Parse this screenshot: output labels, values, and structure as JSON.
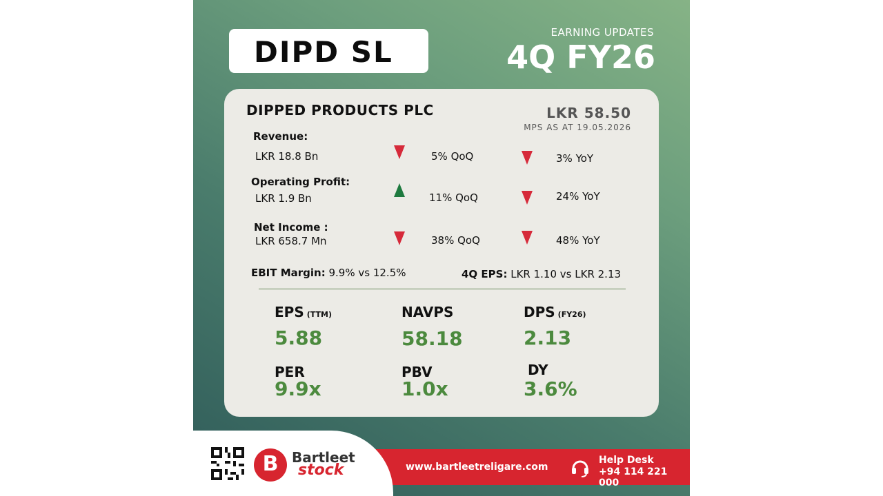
{
  "header": {
    "ticker": "DIPD SL",
    "label": "EARNING UPDATES",
    "quarter": "4Q FY26"
  },
  "company": {
    "name": "DIPPED PRODUCTS PLC",
    "price": "LKR 58.50",
    "price_note": "MPS AS AT 19.05.2026"
  },
  "metrics": [
    {
      "label": "Revenue:",
      "value": "LKR 18.8 Bn",
      "qoq": "5% QoQ",
      "qoq_dir": "down",
      "yoy": "3% YoY",
      "yoy_dir": "down"
    },
    {
      "label": "Operating Profit:",
      "value": "LKR 1.9 Bn",
      "qoq": "11% QoQ",
      "qoq_dir": "up",
      "yoy": "24% YoY",
      "yoy_dir": "down"
    },
    {
      "label": "Net Income :",
      "value": "LKR 658.7 Mn",
      "qoq": "38% QoQ",
      "qoq_dir": "down",
      "yoy": "48% YoY",
      "yoy_dir": "down"
    }
  ],
  "margins": {
    "ebit_label": "EBIT Margin:",
    "ebit_value": "9.9% vs 12.5%",
    "eps_label": "4Q EPS:",
    "eps_value": "LKR 1.10 vs LKR 2.13"
  },
  "ratios": {
    "eps": {
      "label": "EPS",
      "sub": "(TTM)",
      "value": "5.88"
    },
    "navps": {
      "label": "NAVPS",
      "value": "58.18"
    },
    "dps": {
      "label": "DPS",
      "sub": "(FY26)",
      "value": "2.13"
    },
    "per": {
      "label": "PER",
      "value": "9.9x"
    },
    "pbv": {
      "label": "PBV",
      "value": "1.0x"
    },
    "dy": {
      "label": "DY",
      "value": "3.6%"
    }
  },
  "footer": {
    "brand_top": "Bartleet",
    "brand_bottom": "stock",
    "website": "www.bartleetreligare.com",
    "help_label": "Help Desk",
    "help_phone": "+94 114 221 000"
  },
  "colors": {
    "accent_green": "#4c8a3e",
    "down_red": "#d62a3a",
    "up_green": "#1e7a3f",
    "brand_red": "#d7252f"
  },
  "icons": {
    "qr": "qr-code-icon",
    "logo": "bartleet-logo-icon",
    "headset": "headset-icon"
  }
}
